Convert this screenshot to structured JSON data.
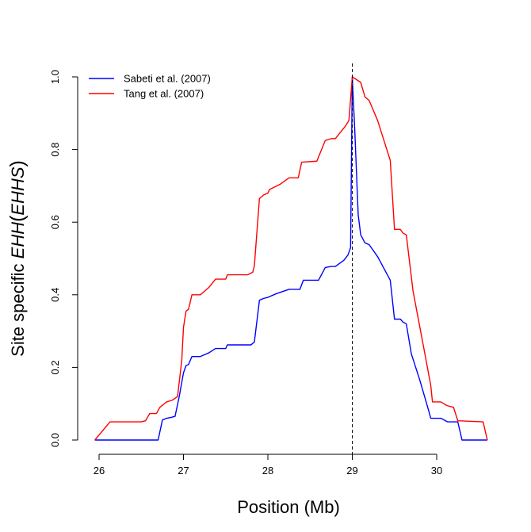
{
  "chart_data": {
    "type": "line",
    "title": "",
    "xlabel": "Position (Mb)",
    "ylabel": {
      "prefix": "Site specific ",
      "ehh": "EHH",
      "paren_open": "(",
      "ehhs": "EHHS",
      "paren_close": ")"
    },
    "xlim": [
      25.95,
      30.6
    ],
    "ylim": [
      0,
      1
    ],
    "xticks": [
      26,
      27,
      28,
      29,
      30
    ],
    "xtick_labels": [
      "26",
      "27",
      "28",
      "29",
      "30"
    ],
    "yticks": [
      0,
      0.2,
      0.4,
      0.6,
      0.8,
      1
    ],
    "ytick_labels": [
      "0.0",
      "0.2",
      "0.4",
      "0.6",
      "0.8",
      "1.0"
    ],
    "grid": false,
    "legend_position": "top-left",
    "vline": {
      "x": 29.0,
      "style": "dashed",
      "color": "#000000"
    },
    "series": [
      {
        "name": "Sabeti et al. (2007)",
        "color": "#0000ff",
        "points": [
          [
            25.95,
            0.0
          ],
          [
            26.7,
            0.0
          ],
          [
            26.75,
            0.055
          ],
          [
            26.8,
            0.06
          ],
          [
            26.85,
            0.062
          ],
          [
            26.9,
            0.065
          ],
          [
            26.95,
            0.12
          ],
          [
            27.0,
            0.185
          ],
          [
            27.03,
            0.205
          ],
          [
            27.06,
            0.208
          ],
          [
            27.1,
            0.23
          ],
          [
            27.2,
            0.23
          ],
          [
            27.3,
            0.24
          ],
          [
            27.38,
            0.252
          ],
          [
            27.5,
            0.252
          ],
          [
            27.52,
            0.262
          ],
          [
            27.8,
            0.262
          ],
          [
            27.84,
            0.27
          ],
          [
            27.9,
            0.385
          ],
          [
            27.95,
            0.39
          ],
          [
            28.0,
            0.393
          ],
          [
            28.1,
            0.403
          ],
          [
            28.25,
            0.415
          ],
          [
            28.38,
            0.415
          ],
          [
            28.42,
            0.44
          ],
          [
            28.6,
            0.44
          ],
          [
            28.68,
            0.475
          ],
          [
            28.75,
            0.478
          ],
          [
            28.8,
            0.478
          ],
          [
            28.9,
            0.495
          ],
          [
            28.95,
            0.51
          ],
          [
            28.98,
            0.53
          ],
          [
            29.0,
            1.0
          ],
          [
            29.03,
            0.85
          ],
          [
            29.07,
            0.62
          ],
          [
            29.1,
            0.565
          ],
          [
            29.15,
            0.543
          ],
          [
            29.2,
            0.538
          ],
          [
            29.3,
            0.505
          ],
          [
            29.45,
            0.44
          ],
          [
            29.5,
            0.333
          ],
          [
            29.57,
            0.333
          ],
          [
            29.6,
            0.325
          ],
          [
            29.64,
            0.32
          ],
          [
            29.7,
            0.237
          ],
          [
            29.8,
            0.165
          ],
          [
            29.9,
            0.085
          ],
          [
            29.93,
            0.06
          ],
          [
            30.05,
            0.06
          ],
          [
            30.13,
            0.05
          ],
          [
            30.25,
            0.05
          ],
          [
            30.3,
            0.0
          ],
          [
            30.6,
            0.0
          ]
        ]
      },
      {
        "name": "Tang et al. (2007)",
        "color": "#ff0000",
        "points": [
          [
            25.95,
            0.0
          ],
          [
            26.13,
            0.05
          ],
          [
            26.5,
            0.05
          ],
          [
            26.55,
            0.053
          ],
          [
            26.6,
            0.073
          ],
          [
            26.68,
            0.073
          ],
          [
            26.72,
            0.09
          ],
          [
            26.8,
            0.105
          ],
          [
            26.87,
            0.11
          ],
          [
            26.93,
            0.12
          ],
          [
            26.98,
            0.22
          ],
          [
            27.0,
            0.31
          ],
          [
            27.03,
            0.355
          ],
          [
            27.06,
            0.36
          ],
          [
            27.1,
            0.4
          ],
          [
            27.2,
            0.4
          ],
          [
            27.3,
            0.42
          ],
          [
            27.38,
            0.443
          ],
          [
            27.5,
            0.443
          ],
          [
            27.52,
            0.455
          ],
          [
            27.76,
            0.455
          ],
          [
            27.82,
            0.462
          ],
          [
            27.84,
            0.48
          ],
          [
            27.9,
            0.665
          ],
          [
            27.95,
            0.675
          ],
          [
            28.0,
            0.68
          ],
          [
            28.02,
            0.69
          ],
          [
            28.15,
            0.705
          ],
          [
            28.25,
            0.722
          ],
          [
            28.36,
            0.722
          ],
          [
            28.4,
            0.765
          ],
          [
            28.58,
            0.768
          ],
          [
            28.68,
            0.825
          ],
          [
            28.75,
            0.83
          ],
          [
            28.8,
            0.83
          ],
          [
            28.92,
            0.865
          ],
          [
            28.96,
            0.88
          ],
          [
            29.0,
            1.0
          ],
          [
            29.1,
            0.985
          ],
          [
            29.15,
            0.945
          ],
          [
            29.2,
            0.935
          ],
          [
            29.3,
            0.88
          ],
          [
            29.45,
            0.77
          ],
          [
            29.5,
            0.58
          ],
          [
            29.57,
            0.58
          ],
          [
            29.6,
            0.57
          ],
          [
            29.64,
            0.565
          ],
          [
            29.72,
            0.41
          ],
          [
            29.85,
            0.25
          ],
          [
            29.93,
            0.15
          ],
          [
            29.95,
            0.105
          ],
          [
            30.05,
            0.105
          ],
          [
            30.12,
            0.095
          ],
          [
            30.2,
            0.09
          ],
          [
            30.25,
            0.053
          ],
          [
            30.55,
            0.05
          ],
          [
            30.6,
            0.0
          ]
        ]
      }
    ]
  }
}
